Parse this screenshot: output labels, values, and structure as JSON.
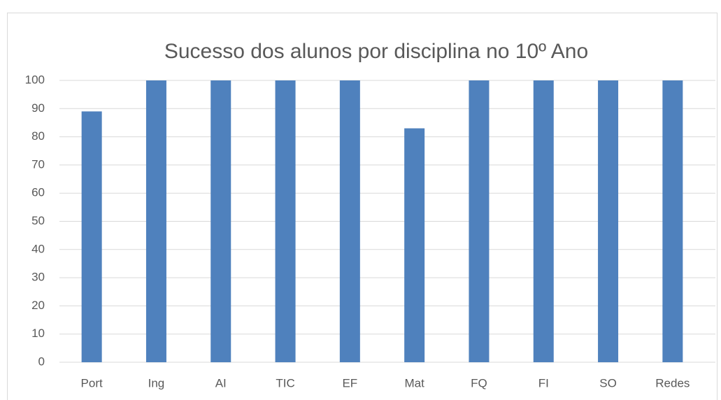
{
  "chart_data": {
    "type": "bar",
    "title": "Sucesso dos alunos por disciplina no 10º Ano",
    "categories": [
      "Port",
      "Ing",
      "AI",
      "TIC",
      "EF",
      "Mat",
      "FQ",
      "FI",
      "SO",
      "Redes"
    ],
    "values": [
      89,
      100,
      100,
      100,
      100,
      83,
      100,
      100,
      100,
      100
    ],
    "color": "#4f81bd",
    "ylim": [
      0,
      100
    ],
    "yticks": [
      0,
      10,
      20,
      30,
      40,
      50,
      60,
      70,
      80,
      90,
      100
    ],
    "grid": true
  }
}
